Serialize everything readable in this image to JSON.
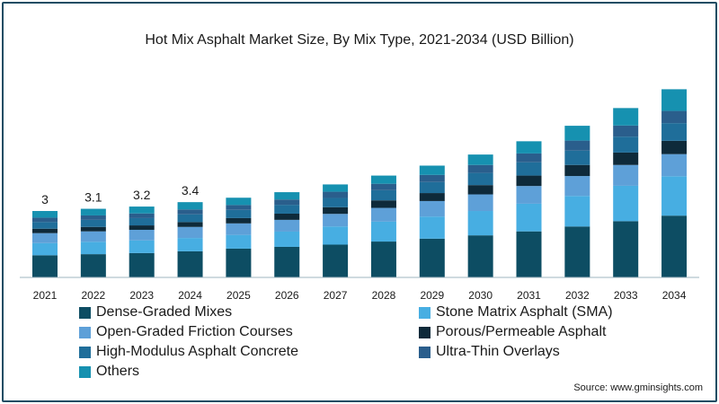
{
  "chart_data": {
    "type": "bar",
    "stacked": true,
    "title": "Hot Mix Asphalt Market Size, By Mix Type, 2021-2034 (USD Billion)",
    "categories": [
      "2021",
      "2022",
      "2023",
      "2024",
      "2025",
      "2026",
      "2027",
      "2028",
      "2029",
      "2030",
      "2031",
      "2032",
      "2033",
      "2034"
    ],
    "totals": [
      3.0,
      3.1,
      3.2,
      3.4,
      3.6,
      3.85,
      4.2,
      4.6,
      5.05,
      5.55,
      6.15,
      6.85,
      7.65,
      8.5
    ],
    "total_labels": [
      "3",
      "3.1",
      "3.2",
      "3.4"
    ],
    "series": [
      {
        "name": "Dense-Graded Mixes",
        "color": "#0d4d63",
        "values": [
          1.0,
          1.05,
          1.1,
          1.18,
          1.3,
          1.38,
          1.48,
          1.62,
          1.75,
          1.9,
          2.08,
          2.3,
          2.54,
          2.79
        ]
      },
      {
        "name": "Stone Matrix Asphalt (SMA)",
        "color": "#47aee2",
        "values": [
          0.55,
          0.56,
          0.57,
          0.6,
          0.62,
          0.69,
          0.82,
          0.9,
          1.0,
          1.1,
          1.25,
          1.38,
          1.6,
          1.78
        ]
      },
      {
        "name": "Open-Graded Friction Courses",
        "color": "#5ea0d8",
        "values": [
          0.45,
          0.47,
          0.48,
          0.5,
          0.52,
          0.53,
          0.57,
          0.62,
          0.7,
          0.75,
          0.8,
          0.9,
          0.94,
          1.0
        ]
      },
      {
        "name": "Porous/Permeable Asphalt",
        "color": "#0e2a3a",
        "values": [
          0.2,
          0.2,
          0.2,
          0.22,
          0.24,
          0.28,
          0.3,
          0.34,
          0.36,
          0.42,
          0.47,
          0.5,
          0.56,
          0.6
        ]
      },
      {
        "name": "High-Modulus Asphalt Concrete",
        "color": "#1f6e9a",
        "values": [
          0.3,
          0.32,
          0.33,
          0.35,
          0.37,
          0.4,
          0.42,
          0.46,
          0.5,
          0.55,
          0.6,
          0.65,
          0.72,
          0.8
        ]
      },
      {
        "name": "Ultra-Thin Overlays",
        "color": "#2a5e8c",
        "values": [
          0.2,
          0.2,
          0.21,
          0.22,
          0.22,
          0.24,
          0.28,
          0.29,
          0.32,
          0.36,
          0.4,
          0.45,
          0.5,
          0.55
        ]
      },
      {
        "name": "Others",
        "color": "#1691b0",
        "values": [
          0.3,
          0.3,
          0.31,
          0.33,
          0.33,
          0.33,
          0.33,
          0.37,
          0.42,
          0.47,
          0.55,
          0.67,
          0.79,
          0.98
        ]
      }
    ],
    "ylim": [
      0,
      8.8
    ],
    "grid": false,
    "legend_position": "bottom"
  },
  "source": "Source: www.gminsights.com"
}
